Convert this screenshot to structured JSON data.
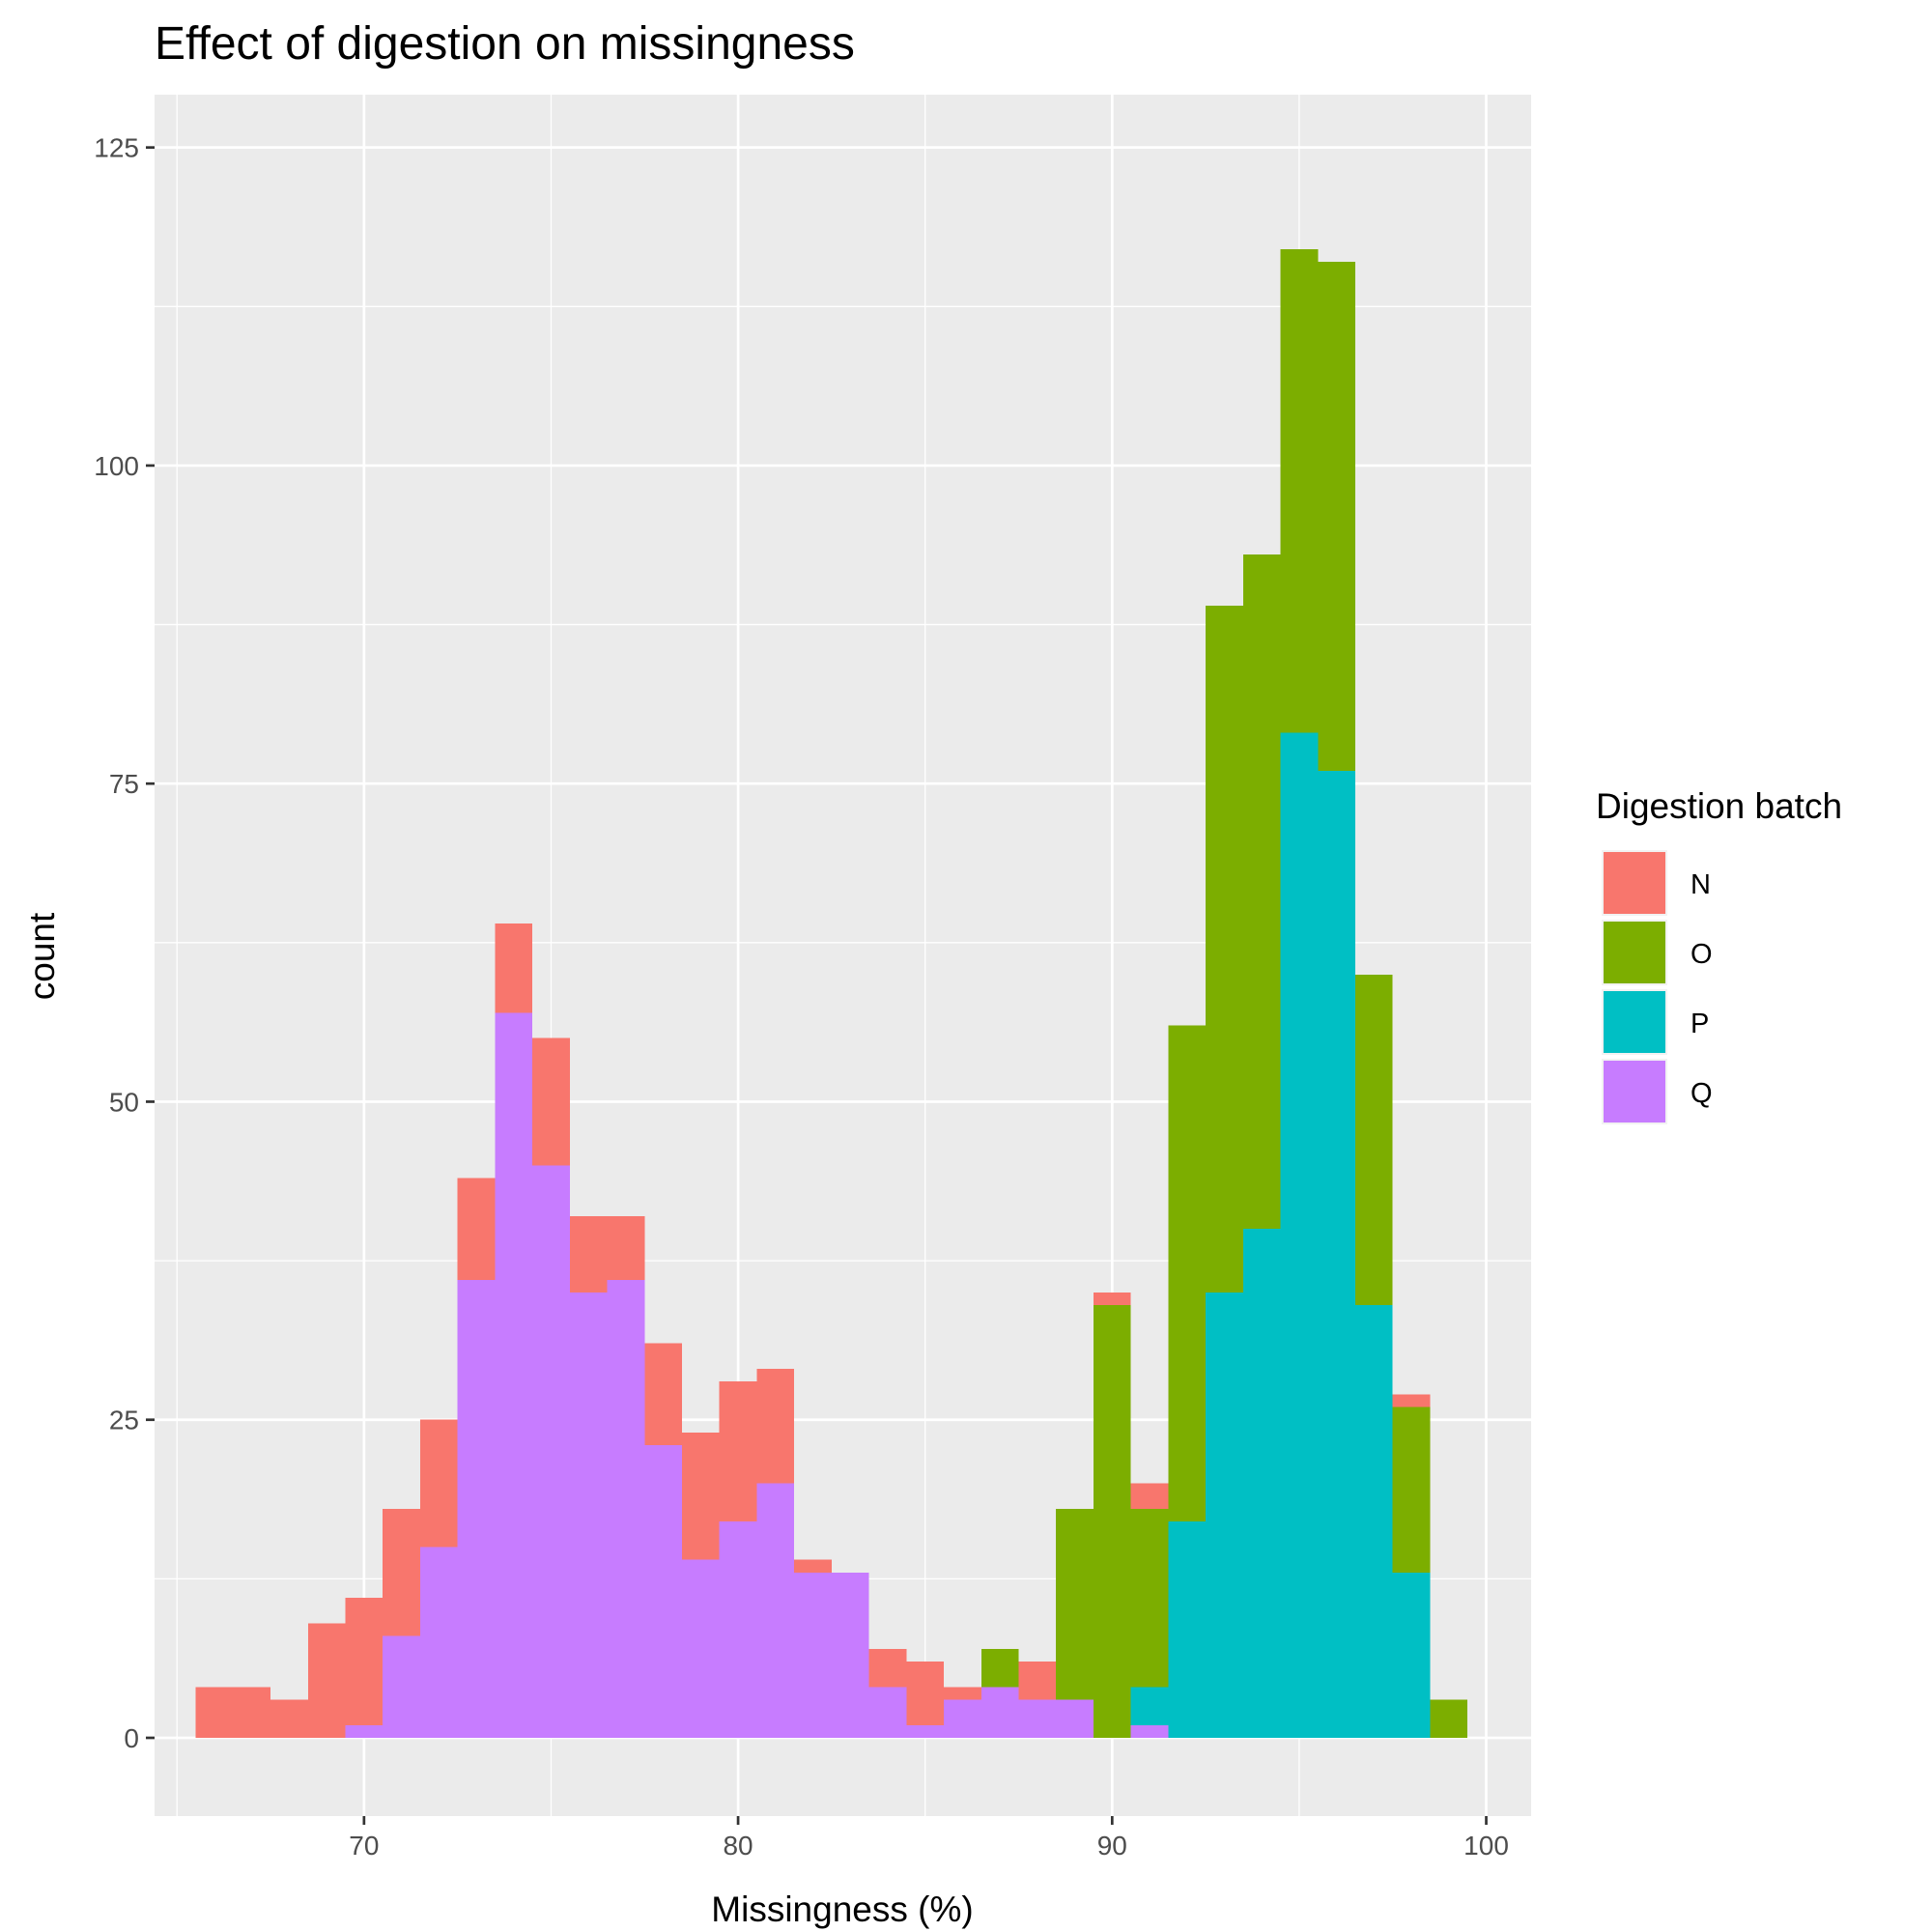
{
  "chart_data": {
    "type": "bar",
    "stacked": true,
    "title": "Effect of digestion on missingness",
    "xlabel": "Missingness (%)",
    "ylabel": "count",
    "xlim": [
      64.4,
      101.2
    ],
    "ylim": [
      -6.15,
      129.15
    ],
    "xticks": [
      70,
      80,
      90,
      100
    ],
    "yticks": [
      0,
      25,
      50,
      75,
      100,
      125
    ],
    "xtick_labels": [
      "70",
      "80",
      "90",
      "100"
    ],
    "ytick_labels": [
      "0",
      "25",
      "50",
      "75",
      "100",
      "125"
    ],
    "grid": true,
    "legend": {
      "title": "Digestion batch",
      "position": "right"
    },
    "bin_width": 1.0,
    "bin_centers": [
      66,
      67,
      68,
      69,
      70,
      71,
      72,
      73,
      74,
      75,
      76,
      77,
      78,
      79,
      80,
      81,
      82,
      83,
      84,
      85,
      86,
      87,
      88,
      89,
      90,
      91,
      92,
      93,
      94,
      95,
      96,
      97,
      98,
      99
    ],
    "series": [
      {
        "name": "N",
        "color": "#F8766D",
        "values": [
          4,
          4,
          3,
          9,
          10,
          10,
          10,
          8,
          7,
          10,
          6,
          5,
          8,
          10,
          11,
          9,
          1,
          0,
          3,
          5,
          1,
          0,
          3,
          0,
          1,
          2,
          0,
          0,
          0,
          0,
          0,
          0,
          1,
          0
        ]
      },
      {
        "name": "O",
        "color": "#7CAE00",
        "values": [
          0,
          0,
          0,
          0,
          0,
          0,
          0,
          0,
          0,
          0,
          0,
          0,
          0,
          0,
          0,
          0,
          0,
          0,
          0,
          0,
          0,
          3,
          0,
          15,
          34,
          14,
          39,
          54,
          53,
          38,
          40,
          26,
          13,
          3
        ]
      },
      {
        "name": "P",
        "color": "#00BFC4",
        "values": [
          0,
          0,
          0,
          0,
          0,
          0,
          0,
          0,
          0,
          0,
          0,
          0,
          0,
          0,
          0,
          0,
          0,
          0,
          0,
          0,
          0,
          0,
          0,
          0,
          0,
          3,
          17,
          35,
          40,
          79,
          76,
          34,
          13,
          0
        ]
      },
      {
        "name": "Q",
        "color": "#C77CFF",
        "values": [
          0,
          0,
          0,
          0,
          1,
          8,
          15,
          36,
          57,
          45,
          35,
          36,
          23,
          14,
          17,
          20,
          13,
          13,
          4,
          1,
          3,
          4,
          3,
          3,
          0,
          1,
          0,
          0,
          0,
          0,
          0,
          0,
          0,
          0
        ]
      }
    ]
  }
}
